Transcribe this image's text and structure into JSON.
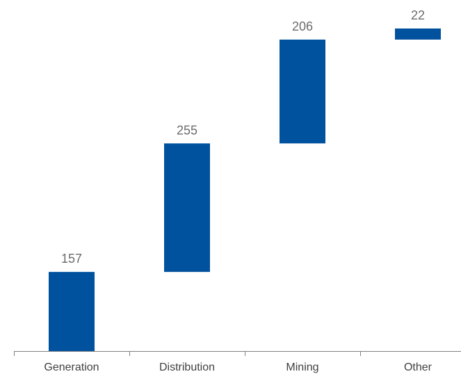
{
  "chart_data": {
    "type": "bar",
    "subtype": "waterfall",
    "categories": [
      "Generation",
      "Distribution",
      "Mining",
      "Other"
    ],
    "values": [
      157,
      255,
      206,
      22
    ],
    "cumulative_end": [
      157,
      412,
      618,
      640
    ],
    "title": "",
    "xlabel": "",
    "ylabel": "",
    "ylim": [
      0,
      640
    ],
    "grid": false,
    "legend": "none",
    "colors": {
      "bar": "#00519E",
      "axis": "#808080",
      "data_label": "#6b6b6b",
      "tick_label": "#404040"
    }
  }
}
